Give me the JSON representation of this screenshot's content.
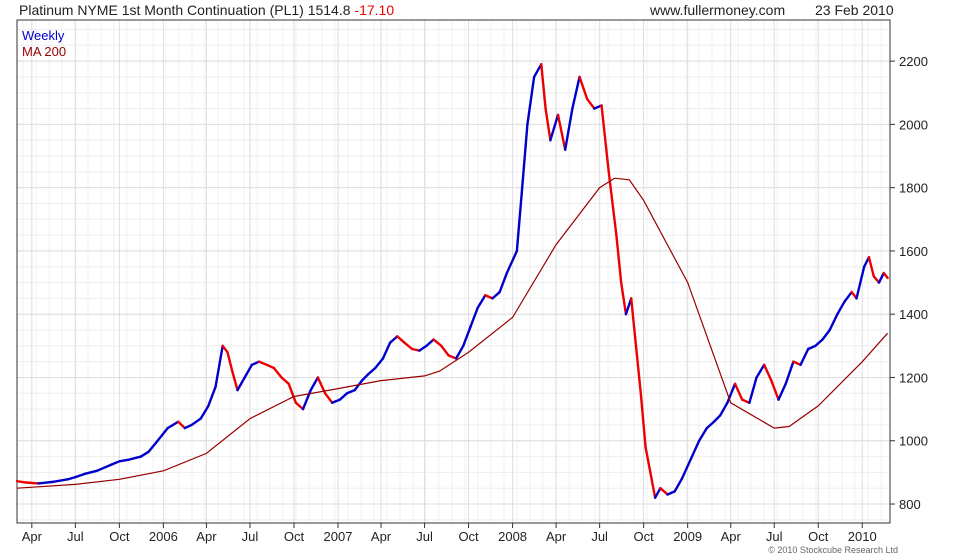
{
  "header": {
    "title": "Platinum NYME 1st Month Continuation (PL1) 1514.8",
    "change": "-17.10",
    "site": "www.fullermoney.com",
    "date": "23 Feb 2010"
  },
  "legend": {
    "weekly": "Weekly",
    "ma": "MA 200"
  },
  "footer": {
    "copyright": "© 2010 Stockcube Research Ltd"
  },
  "colors": {
    "up": "#0000cc",
    "down": "#ee0000",
    "ma": "#990000",
    "grid": "#dddddd",
    "frame": "#333333"
  },
  "chart_data": {
    "type": "line",
    "x_range": [
      "2005-03-01",
      "2010-02-28"
    ],
    "ylim": [
      740,
      2330
    ],
    "y_ticks": [
      800,
      1000,
      1200,
      1400,
      1600,
      1800,
      2000,
      2200
    ],
    "x_ticks": [
      {
        "label": "Apr",
        "date": "2005-04-01"
      },
      {
        "label": "Jul",
        "date": "2005-07-01"
      },
      {
        "label": "Oct",
        "date": "2005-10-01"
      },
      {
        "label": "2006",
        "date": "2006-01-01"
      },
      {
        "label": "Apr",
        "date": "2006-04-01"
      },
      {
        "label": "Jul",
        "date": "2006-07-01"
      },
      {
        "label": "Oct",
        "date": "2006-10-01"
      },
      {
        "label": "2007",
        "date": "2007-01-01"
      },
      {
        "label": "Apr",
        "date": "2007-04-01"
      },
      {
        "label": "Jul",
        "date": "2007-07-01"
      },
      {
        "label": "Oct",
        "date": "2007-10-01"
      },
      {
        "label": "2008",
        "date": "2008-01-01"
      },
      {
        "label": "Apr",
        "date": "2008-04-01"
      },
      {
        "label": "Jul",
        "date": "2008-07-01"
      },
      {
        "label": "Oct",
        "date": "2008-10-01"
      },
      {
        "label": "2009",
        "date": "2009-01-01"
      },
      {
        "label": "Apr",
        "date": "2009-04-01"
      },
      {
        "label": "Jul",
        "date": "2009-07-01"
      },
      {
        "label": "Oct",
        "date": "2009-10-01"
      },
      {
        "label": "2010",
        "date": "2010-01-01"
      }
    ],
    "series": [
      {
        "name": "Weekly",
        "points": [
          [
            "2005-03-01",
            872
          ],
          [
            "2005-03-20",
            868
          ],
          [
            "2005-04-15",
            865
          ],
          [
            "2005-05-15",
            870
          ],
          [
            "2005-06-15",
            878
          ],
          [
            "2005-07-01",
            885
          ],
          [
            "2005-07-20",
            895
          ],
          [
            "2005-08-15",
            905
          ],
          [
            "2005-09-15",
            925
          ],
          [
            "2005-10-01",
            935
          ],
          [
            "2005-10-20",
            940
          ],
          [
            "2005-11-15",
            950
          ],
          [
            "2005-12-01",
            965
          ],
          [
            "2005-12-20",
            1000
          ],
          [
            "2006-01-10",
            1040
          ],
          [
            "2006-02-01",
            1060
          ],
          [
            "2006-02-15",
            1040
          ],
          [
            "2006-03-01",
            1050
          ],
          [
            "2006-03-20",
            1070
          ],
          [
            "2006-04-05",
            1110
          ],
          [
            "2006-04-20",
            1170
          ],
          [
            "2006-05-05",
            1300
          ],
          [
            "2006-05-15",
            1280
          ],
          [
            "2006-05-25",
            1220
          ],
          [
            "2006-06-05",
            1160
          ],
          [
            "2006-06-20",
            1200
          ],
          [
            "2006-07-05",
            1240
          ],
          [
            "2006-07-20",
            1250
          ],
          [
            "2006-08-05",
            1240
          ],
          [
            "2006-08-20",
            1230
          ],
          [
            "2006-09-05",
            1200
          ],
          [
            "2006-09-20",
            1180
          ],
          [
            "2006-10-05",
            1120
          ],
          [
            "2006-10-20",
            1100
          ],
          [
            "2006-11-05",
            1160
          ],
          [
            "2006-11-20",
            1200
          ],
          [
            "2006-12-05",
            1150
          ],
          [
            "2006-12-20",
            1120
          ],
          [
            "2007-01-05",
            1130
          ],
          [
            "2007-01-20",
            1150
          ],
          [
            "2007-02-05",
            1160
          ],
          [
            "2007-02-20",
            1190
          ],
          [
            "2007-03-05",
            1210
          ],
          [
            "2007-03-20",
            1230
          ],
          [
            "2007-04-05",
            1260
          ],
          [
            "2007-04-20",
            1310
          ],
          [
            "2007-05-05",
            1330
          ],
          [
            "2007-05-20",
            1310
          ],
          [
            "2007-06-05",
            1290
          ],
          [
            "2007-06-20",
            1285
          ],
          [
            "2007-07-05",
            1300
          ],
          [
            "2007-07-20",
            1320
          ],
          [
            "2007-08-05",
            1300
          ],
          [
            "2007-08-20",
            1270
          ],
          [
            "2007-09-05",
            1260
          ],
          [
            "2007-09-20",
            1300
          ],
          [
            "2007-10-05",
            1360
          ],
          [
            "2007-10-20",
            1420
          ],
          [
            "2007-11-05",
            1460
          ],
          [
            "2007-11-20",
            1450
          ],
          [
            "2007-12-05",
            1470
          ],
          [
            "2007-12-20",
            1530
          ],
          [
            "2008-01-10",
            1600
          ],
          [
            "2008-01-20",
            1780
          ],
          [
            "2008-02-01",
            2000
          ],
          [
            "2008-02-15",
            2150
          ],
          [
            "2008-03-01",
            2190
          ],
          [
            "2008-03-10",
            2050
          ],
          [
            "2008-03-20",
            1950
          ],
          [
            "2008-04-05",
            2030
          ],
          [
            "2008-04-20",
            1920
          ],
          [
            "2008-05-05",
            2050
          ],
          [
            "2008-05-20",
            2150
          ],
          [
            "2008-06-05",
            2080
          ],
          [
            "2008-06-20",
            2050
          ],
          [
            "2008-07-05",
            2060
          ],
          [
            "2008-07-20",
            1850
          ],
          [
            "2008-08-05",
            1650
          ],
          [
            "2008-08-15",
            1500
          ],
          [
            "2008-08-25",
            1400
          ],
          [
            "2008-09-05",
            1450
          ],
          [
            "2008-09-15",
            1300
          ],
          [
            "2008-09-25",
            1150
          ],
          [
            "2008-10-05",
            980
          ],
          [
            "2008-10-15",
            900
          ],
          [
            "2008-10-25",
            820
          ],
          [
            "2008-11-05",
            850
          ],
          [
            "2008-11-20",
            830
          ],
          [
            "2008-12-05",
            840
          ],
          [
            "2008-12-20",
            880
          ],
          [
            "2009-01-10",
            950
          ],
          [
            "2009-01-25",
            1000
          ],
          [
            "2009-02-10",
            1040
          ],
          [
            "2009-02-25",
            1060
          ],
          [
            "2009-03-10",
            1080
          ],
          [
            "2009-03-25",
            1120
          ],
          [
            "2009-04-10",
            1180
          ],
          [
            "2009-04-25",
            1130
          ],
          [
            "2009-05-10",
            1120
          ],
          [
            "2009-05-25",
            1200
          ],
          [
            "2009-06-10",
            1240
          ],
          [
            "2009-06-25",
            1190
          ],
          [
            "2009-07-10",
            1130
          ],
          [
            "2009-07-25",
            1180
          ],
          [
            "2009-08-10",
            1250
          ],
          [
            "2009-08-25",
            1240
          ],
          [
            "2009-09-10",
            1290
          ],
          [
            "2009-09-25",
            1300
          ],
          [
            "2009-10-10",
            1320
          ],
          [
            "2009-10-25",
            1350
          ],
          [
            "2009-11-10",
            1400
          ],
          [
            "2009-11-25",
            1440
          ],
          [
            "2009-12-10",
            1470
          ],
          [
            "2009-12-20",
            1450
          ],
          [
            "2010-01-05",
            1550
          ],
          [
            "2010-01-15",
            1580
          ],
          [
            "2010-01-25",
            1520
          ],
          [
            "2010-02-05",
            1500
          ],
          [
            "2010-02-15",
            1530
          ],
          [
            "2010-02-23",
            1514.8
          ]
        ]
      },
      {
        "name": "MA 200",
        "points": [
          [
            "2005-03-01",
            850
          ],
          [
            "2005-07-01",
            862
          ],
          [
            "2005-10-01",
            878
          ],
          [
            "2006-01-01",
            905
          ],
          [
            "2006-04-01",
            960
          ],
          [
            "2006-07-01",
            1070
          ],
          [
            "2006-10-01",
            1140
          ],
          [
            "2007-01-01",
            1165
          ],
          [
            "2007-04-01",
            1190
          ],
          [
            "2007-07-01",
            1205
          ],
          [
            "2007-08-01",
            1220
          ],
          [
            "2007-10-01",
            1280
          ],
          [
            "2008-01-01",
            1390
          ],
          [
            "2008-04-01",
            1620
          ],
          [
            "2008-07-01",
            1800
          ],
          [
            "2008-08-01",
            1830
          ],
          [
            "2008-09-01",
            1825
          ],
          [
            "2008-10-01",
            1760
          ],
          [
            "2009-01-01",
            1500
          ],
          [
            "2009-04-01",
            1120
          ],
          [
            "2009-07-01",
            1040
          ],
          [
            "2009-08-01",
            1045
          ],
          [
            "2009-10-01",
            1110
          ],
          [
            "2010-01-01",
            1250
          ],
          [
            "2010-02-23",
            1340
          ]
        ]
      }
    ]
  }
}
